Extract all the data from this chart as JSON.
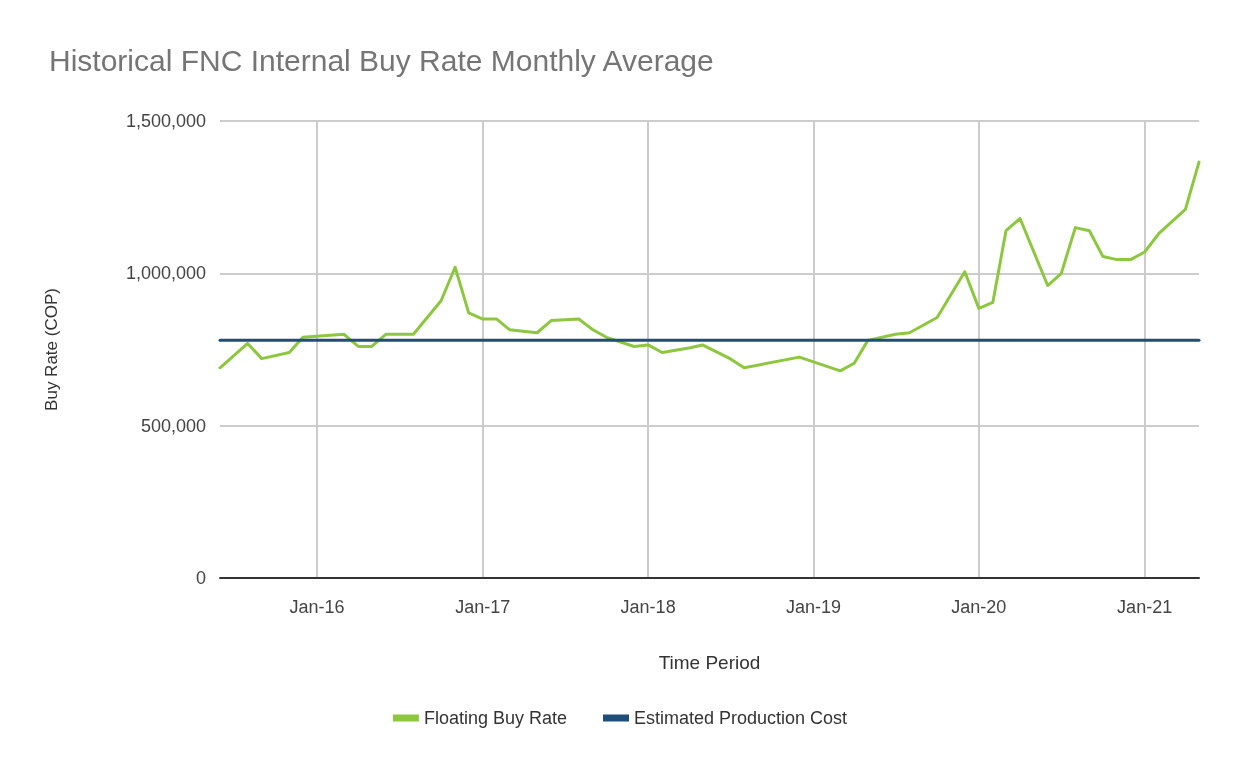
{
  "chart_data": {
    "type": "line",
    "title": "Historical FNC Internal Buy Rate Monthly Average",
    "xlabel": "Time Period",
    "ylabel": "Buy Rate (COP)",
    "xlim": [
      "2015-06",
      "2021-05"
    ],
    "xticks": [
      {
        "value": "2016-01",
        "label": "Jan-16"
      },
      {
        "value": "2017-01",
        "label": "Jan-17"
      },
      {
        "value": "2018-01",
        "label": "Jan-18"
      },
      {
        "value": "2019-01",
        "label": "Jan-19"
      },
      {
        "value": "2020-01",
        "label": "Jan-20"
      },
      {
        "value": "2021-01",
        "label": "Jan-21"
      }
    ],
    "ylim": [
      0,
      1500000
    ],
    "yticks": [
      0,
      {
        "value": 500000,
        "label": "500,000"
      },
      {
        "value": 1000000,
        "label": "1,000,000"
      },
      {
        "value": 1500000,
        "label": "1,500,000"
      }
    ],
    "grid": true,
    "legend": "bottom",
    "marker": "none",
    "line_style": "solid",
    "series": [
      {
        "name": "Floating Buy Rate",
        "color": "#8dc63f",
        "x": [
          "2015-06",
          "2015-08",
          "2015-09",
          "2015-11",
          "2015-12",
          "2016-03",
          "2016-04",
          "2016-05",
          "2016-06",
          "2016-08",
          "2016-10",
          "2016-11",
          "2016-12",
          "2017-01",
          "2017-02",
          "2017-03",
          "2017-05",
          "2017-06",
          "2017-08",
          "2017-09",
          "2017-10",
          "2017-12",
          "2018-01",
          "2018-02",
          "2018-04",
          "2018-05",
          "2018-07",
          "2018-08",
          "2018-12",
          "2019-03",
          "2019-04",
          "2019-05",
          "2019-07",
          "2019-08",
          "2019-10",
          "2019-12",
          "2020-01",
          "2020-02",
          "2020-03",
          "2020-04",
          "2020-06",
          "2020-07",
          "2020-08",
          "2020-09",
          "2020-10",
          "2020-11",
          "2020-12",
          "2021-01",
          "2021-02",
          "2021-04",
          "2021-05"
        ],
        "values": [
          690000,
          770000,
          720000,
          740000,
          790000,
          800000,
          760000,
          760000,
          800000,
          800000,
          910000,
          1020000,
          870000,
          850000,
          850000,
          815000,
          805000,
          845000,
          850000,
          815000,
          790000,
          760000,
          765000,
          740000,
          755000,
          765000,
          720000,
          690000,
          725000,
          680000,
          705000,
          780000,
          800000,
          805000,
          855000,
          1005000,
          885000,
          905000,
          1140000,
          1180000,
          960000,
          1000000,
          1150000,
          1140000,
          1055000,
          1045000,
          1045000,
          1070000,
          1130000,
          1210000,
          1365000
        ]
      },
      {
        "name": "Estimated Production Cost",
        "color": "#1f4e79",
        "x": [
          "2015-06",
          "2021-05"
        ],
        "values": [
          780000,
          780000
        ]
      }
    ]
  }
}
